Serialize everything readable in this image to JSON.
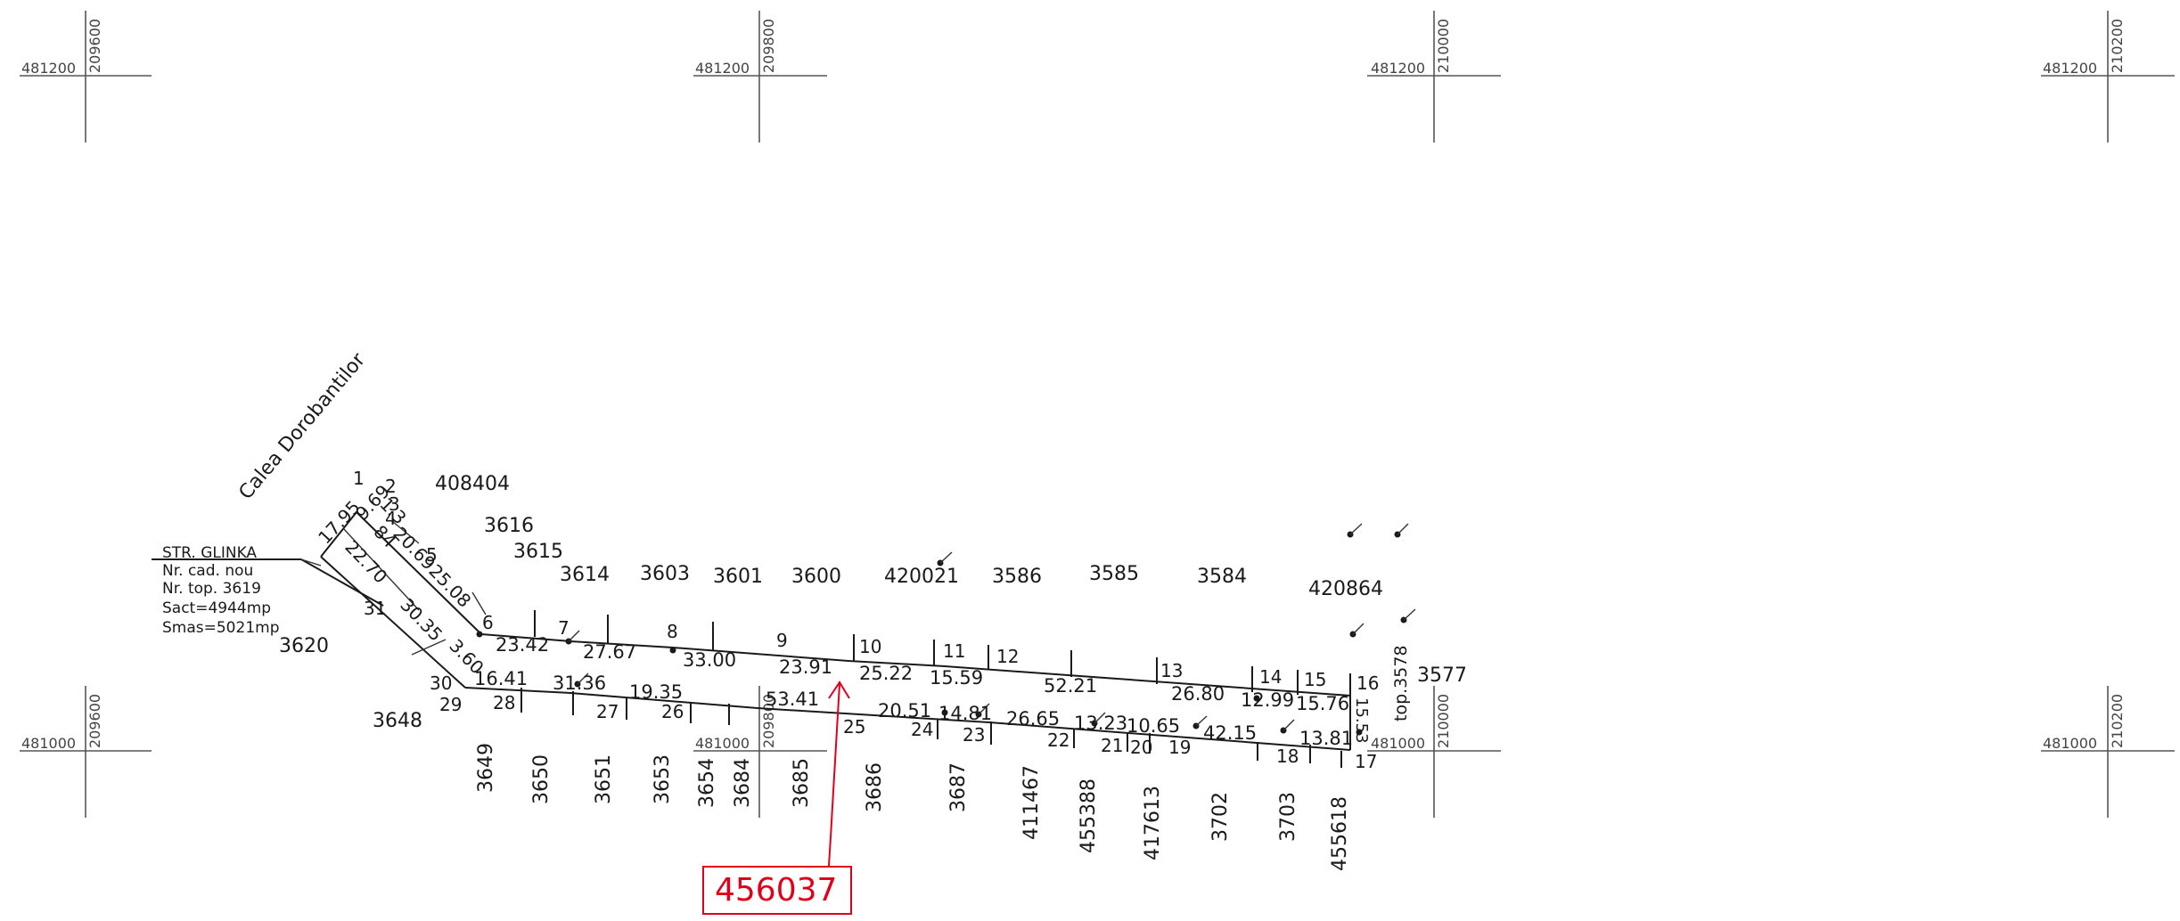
{
  "grid": {
    "top": {
      "cross1": {
        "x": "481200",
        "y": "209600"
      },
      "cross2": {
        "x": "481200",
        "y": "209800"
      },
      "cross3": {
        "x": "481200",
        "y": "210000"
      },
      "cross4": {
        "x": "481200",
        "y": "210200"
      }
    },
    "bottom": {
      "cross1": {
        "x": "481000",
        "y": "209600"
      },
      "cross2": {
        "x": "481000",
        "y": "209800"
      },
      "cross3": {
        "x": "481000",
        "y": "210000"
      },
      "cross4": {
        "x": "481000",
        "y": "210200"
      }
    }
  },
  "street_labels": {
    "calea": "Calea Dorobantilor",
    "glinka": "STR. GLINKA"
  },
  "parcel_info": {
    "cad": "Nr. cad. nou",
    "top": "Nr. top. 3619",
    "sact": "Sact=4944mp",
    "smas": "Smas=5021mp"
  },
  "highlight": {
    "label": "456037",
    "color": "#e0001b"
  },
  "neighbors": {
    "n408404": "408404",
    "n3616": "3616",
    "n3615": "3615",
    "n3614": "3614",
    "n3603": "3603",
    "n3601": "3601",
    "n3600": "3600",
    "n420021": "420021",
    "n3586": "3586",
    "n3585": "3585",
    "n3584": "3584",
    "n420864": "420864",
    "n3577": "3577",
    "top3578": "top.3578",
    "n3620": "3620",
    "n3648": "3648",
    "n3649": "3649",
    "n3650": "3650",
    "n3651": "3651",
    "n3653": "3653",
    "n3654": "3654",
    "n3684": "3684",
    "n3685": "3685",
    "n3686": "3686",
    "n3687": "3687",
    "n411467": "411467",
    "n455388": "455388",
    "n417613": "417613",
    "n3702": "3702",
    "n3703": "3703",
    "n455618": "455618"
  },
  "points": {
    "p1": "1",
    "p2": "2",
    "p3": "3",
    "p4": "4",
    "p5": "5",
    "p6": "6",
    "p7": "7",
    "p8": "8",
    "p9": "9",
    "p10": "10",
    "p11": "11",
    "p12": "12",
    "p13": "13",
    "p14": "14",
    "p15": "15",
    "p16": "16",
    "p17": "17",
    "p18": "18",
    "p19": "19",
    "p20": "20",
    "p21": "21",
    "p22": "22",
    "p23": "23",
    "p24": "24",
    "p25": "25",
    "p26": "26",
    "p27": "27",
    "p28": "28",
    "p29": "29",
    "p30": "30",
    "p31": "31"
  },
  "distances": {
    "d1_2": "17.95",
    "d_2_3": "9.69",
    "d_3": "1.3",
    "d_4": "84",
    "d3_5": "20.69",
    "d5_6": "25.08",
    "d31_1": "22.70",
    "d31_30": "30.35",
    "d30_s": "3.60",
    "d6_7": "23.42",
    "d7_8": "27.67",
    "d8_9": "33.00",
    "d9_10": "23.91",
    "d10_11": "25.22",
    "d11_12": "15.59",
    "d12_13": "52.21",
    "d13_14": "26.80",
    "d14_15": "12.99",
    "d15_16": "15.76",
    "d16_17": "15.53",
    "d30_28": "16.41",
    "d28_27": "31.36",
    "d27_26": "19.35",
    "d26_25": "53.41",
    "d25_24": "20.51",
    "d24_23": "14.81",
    "d23_22": "26.65",
    "d22_21": "13.23",
    "d21_19": "10.65",
    "d19_18": "42.15",
    "d18_17": "13.81"
  }
}
